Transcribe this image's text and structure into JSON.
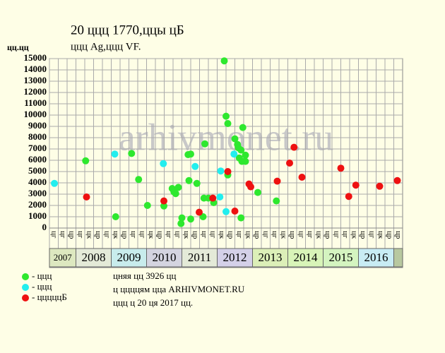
{
  "chart_data": {
    "type": "scatter",
    "title": "20 ццц 1770,ццы цБ",
    "subtitle": "ццц Ag,ццц VF.",
    "y_label": "цц.цц",
    "watermark": "arhivmonet.ru",
    "xlim": [
      0,
      40
    ],
    "ylim": [
      0,
      15000
    ],
    "yticks": [
      0,
      1000,
      2000,
      3000,
      4000,
      5000,
      6000,
      7000,
      8000,
      9000,
      10000,
      11000,
      12000,
      13000,
      14000,
      15000
    ],
    "grid": true,
    "columns": [
      "цг",
      "цг",
      "цр",
      "цг",
      "цк",
      "цр",
      "цг",
      "цк",
      "цр",
      "цг",
      "цг",
      "цк",
      "цр",
      "цг",
      "цг",
      "цк",
      "цр",
      "цг",
      "цг",
      "цк",
      "цр",
      "цг",
      "цк",
      "цр",
      "цг",
      "цг",
      "цк",
      "цр",
      "цг",
      "цг",
      "цк",
      "цр",
      "цг",
      "цг",
      "цк",
      "цр",
      "цг",
      "цк",
      "цр",
      "цр"
    ],
    "years": [
      "2007",
      "2008",
      "2009",
      "2010",
      "2011",
      "2012",
      "2013",
      "2014",
      "2015",
      "2016"
    ],
    "series": [
      {
        "name": "- ццц",
        "color": "#2ee82e",
        "x": [
          4.1,
          7.5,
          9.3,
          10.1,
          11.1,
          12.96,
          13.9,
          14.1,
          14.3,
          14.6,
          14.9,
          15,
          15.7,
          16,
          15.8,
          16,
          16.7,
          17.4,
          17.5,
          17.6,
          18,
          18.6,
          19.8,
          20,
          20.2,
          20.2,
          21,
          21.3,
          21.4,
          21.5,
          21.7,
          21.9,
          21.7,
          21.8,
          22.2,
          22.2,
          23.6,
          25.7
        ],
        "values": [
          5950,
          1000,
          6600,
          4300,
          2000,
          1950,
          3500,
          3200,
          3050,
          3600,
          400,
          900,
          6500,
          6550,
          4200,
          800,
          3950,
          1000,
          2650,
          7450,
          2650,
          2250,
          14800,
          9900,
          9250,
          4700,
          7900,
          7400,
          7100,
          6200,
          6900,
          8900,
          900,
          5900,
          6450,
          5900,
          3150,
          2400
        ]
      },
      {
        "name": "- ццц",
        "color": "#22eeee",
        "x": [
          0.56,
          7.4,
          12.9,
          16.5,
          19.3,
          19.4,
          20,
          20.9
        ],
        "values": [
          3950,
          6550,
          5700,
          5450,
          2750,
          5050,
          1450,
          6550
        ]
      },
      {
        "name": "- цццццБ",
        "color": "#ee1111",
        "x": [
          4.2,
          12.96,
          16.96,
          18.5,
          20.2,
          21,
          22.6,
          22.8,
          25.8,
          27.2,
          27.7,
          28.6,
          33,
          33.9,
          34.7,
          37.4,
          39.4
        ],
        "values": [
          2750,
          2400,
          1400,
          2650,
          5000,
          1500,
          3900,
          3650,
          4150,
          5750,
          7150,
          4500,
          5300,
          2800,
          3800,
          3700,
          4200
        ]
      }
    ],
    "notes": [
      "цняя цц 3926 цц",
      "ц ццццям цца ARHIVMONET.RU",
      "ццц ц 20 ця 2017 цц."
    ]
  }
}
